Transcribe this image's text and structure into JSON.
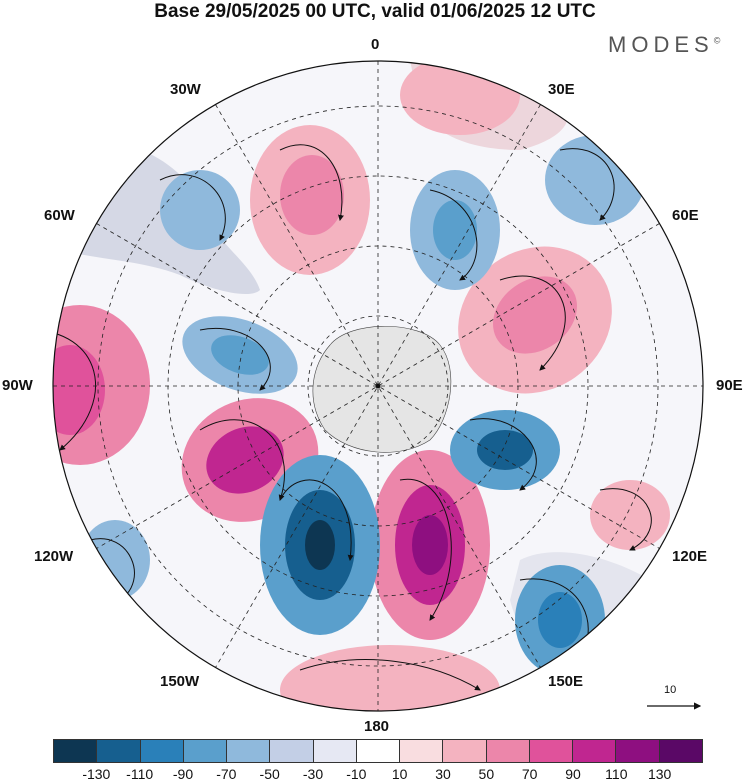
{
  "title": "Base 29/05/2025 00 UTC, valid 01/06/2025 12 UTC",
  "brand": "MODES",
  "brand_mark": "©",
  "longitude_labels": [
    "0",
    "30E",
    "60E",
    "90E",
    "120E",
    "150E",
    "180",
    "150W",
    "120W",
    "90W",
    "60W",
    "30W"
  ],
  "reference_vector": {
    "value": "10"
  },
  "colorbar": {
    "ticks": [
      "-130",
      "-110",
      "-90",
      "-70",
      "-50",
      "-30",
      "-10",
      "10",
      "30",
      "50",
      "70",
      "90",
      "110",
      "130"
    ],
    "colors": [
      "#0d3652",
      "#165f8f",
      "#2a80b9",
      "#5a9fcc",
      "#8fb9dc",
      "#c3cfe6",
      "#e6e8f3",
      "#ffffff",
      "#f9dde0",
      "#f4b3c0",
      "#ec86aa",
      "#e0529b",
      "#c02690",
      "#8e0f80",
      "#5a0866"
    ]
  },
  "colors": {
    "land": "#e5e5e5",
    "positive": "#e0529b",
    "negative": "#2a80b9"
  }
}
